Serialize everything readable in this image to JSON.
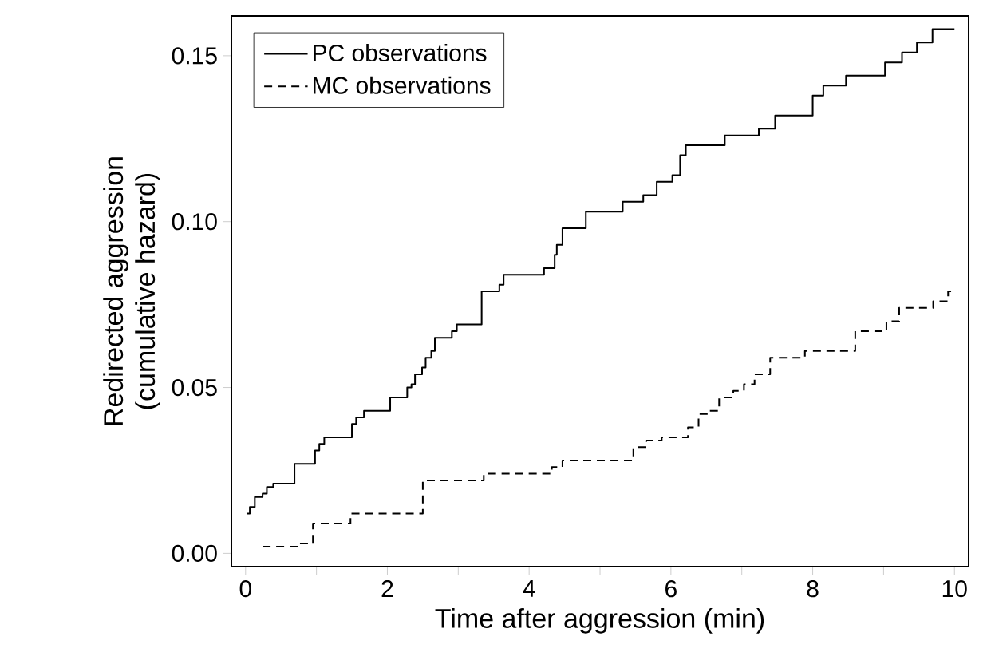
{
  "chart_data": {
    "type": "step",
    "xlabel": "Time after aggression (min)",
    "ylabel": "Redirected aggression\n(cumulative hazard)",
    "xlim": [
      -0.2,
      10.2
    ],
    "ylim": [
      -0.004,
      0.162
    ],
    "xticks": [
      0,
      {
        "value": 1,
        "label": null
      },
      2,
      {
        "value": 3,
        "label": null
      },
      4,
      {
        "value": 5,
        "label": null
      },
      6,
      {
        "value": 7,
        "label": null
      },
      8,
      {
        "value": 9,
        "label": null
      },
      10
    ],
    "yticks": [
      {
        "value": 0,
        "label": "0.00"
      },
      {
        "value": 0.05,
        "label": "0.05"
      },
      {
        "value": 0.1,
        "label": "0.10"
      },
      {
        "value": 0.15,
        "label": "0.15"
      }
    ],
    "legend": "top left",
    "grid": false,
    "series": [
      {
        "name": "PC observations",
        "color": "#000000",
        "line_style": "solid",
        "x": [
          0.02,
          0.06,
          0.13,
          0.24,
          0.3,
          0.39,
          0.69,
          0.98,
          1.04,
          1.11,
          1.5,
          1.56,
          1.67,
          2.04,
          2.28,
          2.34,
          2.39,
          2.49,
          2.54,
          2.62,
          2.67,
          2.91,
          2.98,
          3.33,
          3.58,
          3.64,
          4.21,
          4.36,
          4.39,
          4.47,
          4.8,
          5.32,
          5.61,
          5.8,
          6.02,
          6.13,
          6.21,
          6.76,
          7.24,
          7.47,
          8.0,
          8.15,
          8.47,
          9.02,
          9.26,
          9.47,
          9.69,
          10.0
        ],
        "values": [
          0.012,
          0.014,
          0.017,
          0.018,
          0.02,
          0.021,
          0.027,
          0.031,
          0.033,
          0.035,
          0.039,
          0.041,
          0.043,
          0.047,
          0.05,
          0.051,
          0.054,
          0.056,
          0.059,
          0.061,
          0.065,
          0.067,
          0.069,
          0.079,
          0.081,
          0.084,
          0.086,
          0.09,
          0.093,
          0.098,
          0.103,
          0.106,
          0.108,
          0.112,
          0.114,
          0.12,
          0.123,
          0.126,
          0.128,
          0.132,
          0.138,
          0.141,
          0.144,
          0.148,
          0.151,
          0.154,
          0.158,
          0.158
        ]
      },
      {
        "name": "MC observations",
        "color": "#000000",
        "line_style": "dashed",
        "x": [
          0.24,
          0.76,
          0.95,
          1.48,
          2.5,
          3.36,
          4.32,
          4.47,
          5.47,
          5.65,
          5.87,
          6.24,
          6.39,
          6.54,
          6.68,
          6.88,
          7.03,
          7.18,
          7.4,
          7.89,
          8.6,
          9.04,
          9.22,
          9.7,
          9.91,
          10.0
        ],
        "values": [
          0.002,
          0.003,
          0.009,
          0.012,
          0.022,
          0.024,
          0.026,
          0.028,
          0.032,
          0.034,
          0.035,
          0.038,
          0.042,
          0.043,
          0.047,
          0.049,
          0.051,
          0.054,
          0.059,
          0.061,
          0.067,
          0.07,
          0.074,
          0.076,
          0.079,
          0.079
        ]
      }
    ]
  }
}
